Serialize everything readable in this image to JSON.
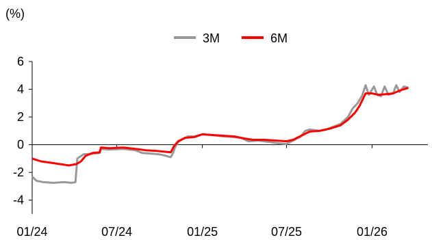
{
  "chart_data": {
    "type": "line",
    "ylabel": "(%)",
    "ylim": [
      -5,
      6
    ],
    "yticks": [
      -4,
      -2,
      0,
      2,
      4,
      6
    ],
    "xlim": [
      "2024-01",
      "2026-05"
    ],
    "xticks": [
      {
        "label": "01/24",
        "date": "2024-01"
      },
      {
        "label": "07/24",
        "date": "2024-07"
      },
      {
        "label": "01/25",
        "date": "2025-01"
      },
      {
        "label": "07/25",
        "date": "2025-07"
      },
      {
        "label": "01/26",
        "date": "2026-01"
      }
    ],
    "legend": {
      "position": "top-center"
    },
    "grid": false,
    "series": [
      {
        "name": "3M",
        "color": "#999999",
        "points": [
          [
            "2024-01-01",
            -2.3
          ],
          [
            "2024-01-10",
            -2.6
          ],
          [
            "2024-01-25",
            -2.7
          ],
          [
            "2024-02-15",
            -2.75
          ],
          [
            "2024-03-10",
            -2.7
          ],
          [
            "2024-03-25",
            -2.75
          ],
          [
            "2024-04-03",
            -2.7
          ],
          [
            "2024-04-07",
            -1.0
          ],
          [
            "2024-04-20",
            -0.7
          ],
          [
            "2024-05-10",
            -0.65
          ],
          [
            "2024-05-25",
            -0.6
          ],
          [
            "2024-05-28",
            -0.3
          ],
          [
            "2024-06-15",
            -0.35
          ],
          [
            "2024-07-15",
            -0.3
          ],
          [
            "2024-08-10",
            -0.4
          ],
          [
            "2024-08-25",
            -0.6
          ],
          [
            "2024-09-15",
            -0.65
          ],
          [
            "2024-10-01",
            -0.7
          ],
          [
            "2024-10-15",
            -0.8
          ],
          [
            "2024-10-25",
            -0.9
          ],
          [
            "2024-10-30",
            -0.6
          ],
          [
            "2024-11-03",
            -0.2
          ],
          [
            "2024-11-10",
            0.2
          ],
          [
            "2024-11-20",
            0.4
          ],
          [
            "2024-12-01",
            0.6
          ],
          [
            "2024-12-15",
            0.6
          ],
          [
            "2025-01-01",
            0.75
          ],
          [
            "2025-01-20",
            0.7
          ],
          [
            "2025-02-15",
            0.6
          ],
          [
            "2025-03-10",
            0.55
          ],
          [
            "2025-03-25",
            0.5
          ],
          [
            "2025-04-10",
            0.25
          ],
          [
            "2025-05-01",
            0.3
          ],
          [
            "2025-05-25",
            0.2
          ],
          [
            "2025-06-15",
            0.1
          ],
          [
            "2025-07-01",
            0.05
          ],
          [
            "2025-07-15",
            0.3
          ],
          [
            "2025-08-01",
            0.6
          ],
          [
            "2025-08-10",
            1.0
          ],
          [
            "2025-08-20",
            1.1
          ],
          [
            "2025-09-10",
            1.0
          ],
          [
            "2025-09-25",
            1.1
          ],
          [
            "2025-10-10",
            1.3
          ],
          [
            "2025-10-25",
            1.5
          ],
          [
            "2025-11-10",
            2.0
          ],
          [
            "2025-11-20",
            2.6
          ],
          [
            "2025-12-01",
            3.0
          ],
          [
            "2025-12-10",
            3.5
          ],
          [
            "2025-12-18",
            4.3
          ],
          [
            "2025-12-25",
            3.6
          ],
          [
            "2026-01-05",
            4.2
          ],
          [
            "2026-01-12",
            3.6
          ],
          [
            "2026-01-20",
            3.5
          ],
          [
            "2026-01-28",
            4.2
          ],
          [
            "2026-02-05",
            3.6
          ],
          [
            "2026-02-15",
            3.7
          ],
          [
            "2026-02-22",
            4.3
          ],
          [
            "2026-03-01",
            3.8
          ],
          [
            "2026-03-10",
            4.2
          ],
          [
            "2026-03-20",
            4.1
          ]
        ]
      },
      {
        "name": "6M",
        "color": "#ff0000",
        "points": [
          [
            "2024-01-01",
            -1.0
          ],
          [
            "2024-01-20",
            -1.2
          ],
          [
            "2024-02-10",
            -1.3
          ],
          [
            "2024-03-01",
            -1.4
          ],
          [
            "2024-03-20",
            -1.5
          ],
          [
            "2024-04-05",
            -1.4
          ],
          [
            "2024-04-15",
            -1.2
          ],
          [
            "2024-04-25",
            -0.8
          ],
          [
            "2024-05-10",
            -0.6
          ],
          [
            "2024-05-25",
            -0.55
          ],
          [
            "2024-05-28",
            -0.2
          ],
          [
            "2024-06-15",
            -0.25
          ],
          [
            "2024-07-15",
            -0.2
          ],
          [
            "2024-08-10",
            -0.3
          ],
          [
            "2024-09-01",
            -0.4
          ],
          [
            "2024-09-25",
            -0.45
          ],
          [
            "2024-10-10",
            -0.5
          ],
          [
            "2024-10-25",
            -0.55
          ],
          [
            "2024-11-01",
            -0.1
          ],
          [
            "2024-11-10",
            0.25
          ],
          [
            "2024-11-25",
            0.5
          ],
          [
            "2024-12-15",
            0.55
          ],
          [
            "2025-01-01",
            0.75
          ],
          [
            "2025-01-20",
            0.7
          ],
          [
            "2025-02-15",
            0.65
          ],
          [
            "2025-03-10",
            0.6
          ],
          [
            "2025-04-01",
            0.45
          ],
          [
            "2025-04-20",
            0.35
          ],
          [
            "2025-05-15",
            0.35
          ],
          [
            "2025-06-10",
            0.3
          ],
          [
            "2025-07-01",
            0.25
          ],
          [
            "2025-07-15",
            0.35
          ],
          [
            "2025-08-05",
            0.7
          ],
          [
            "2025-08-20",
            0.95
          ],
          [
            "2025-09-10",
            1.0
          ],
          [
            "2025-10-01",
            1.15
          ],
          [
            "2025-10-25",
            1.4
          ],
          [
            "2025-11-10",
            1.8
          ],
          [
            "2025-11-25",
            2.3
          ],
          [
            "2025-12-05",
            2.8
          ],
          [
            "2025-12-18",
            3.7
          ],
          [
            "2026-01-01",
            3.7
          ],
          [
            "2026-01-15",
            3.6
          ],
          [
            "2026-02-01",
            3.65
          ],
          [
            "2026-02-15",
            3.7
          ],
          [
            "2026-03-01",
            3.9
          ],
          [
            "2026-03-10",
            4.0
          ],
          [
            "2026-03-20",
            4.1
          ]
        ]
      }
    ]
  }
}
